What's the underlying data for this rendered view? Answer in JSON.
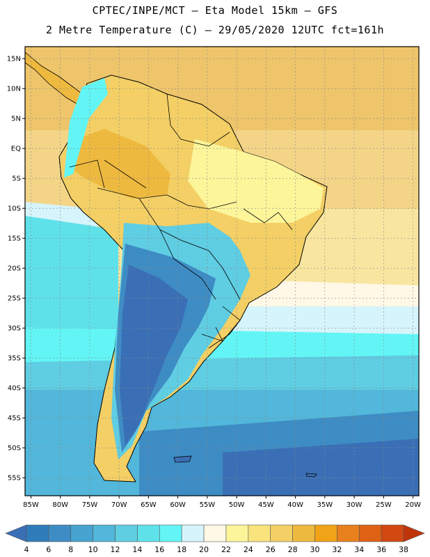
{
  "title": {
    "line1": "CPTEC/INPE/MCT –  Eta Model 15km – GFS",
    "line2": "2 Metre Temperature (C) – 29/05/2020 12UTC fct=161h"
  },
  "map": {
    "lon_range": [
      -86,
      -19
    ],
    "lat_range": [
      -58,
      17
    ],
    "lon_ticks": [
      "85W",
      "80W",
      "75W",
      "70W",
      "65W",
      "60W",
      "55W",
      "50W",
      "45W",
      "40W",
      "35W",
      "30W",
      "25W",
      "20W"
    ],
    "lat_ticks": [
      "15N",
      "10N",
      "5N",
      "EQ",
      "5S",
      "10S",
      "15S",
      "20S",
      "25S",
      "30S",
      "35S",
      "40S",
      "45S",
      "50S",
      "55S"
    ]
  },
  "colorbar": {
    "labels": [
      "4",
      "6",
      "8",
      "10",
      "12",
      "14",
      "16",
      "18",
      "20",
      "22",
      "24",
      "26",
      "28",
      "30",
      "32",
      "34",
      "36",
      "38"
    ],
    "colors": [
      "#3a6fb6",
      "#2f7cba",
      "#3e8cc4",
      "#47a3cf",
      "#52b7da",
      "#5fcde2",
      "#5fe1ea",
      "#63f5f5",
      "#d6f4fb",
      "#fff8e6",
      "#fcf59a",
      "#f8e37c",
      "#f3cf65",
      "#eeb93f",
      "#f1a317",
      "#e8801e",
      "#df6114",
      "#d24811",
      "#c0340c"
    ]
  }
}
